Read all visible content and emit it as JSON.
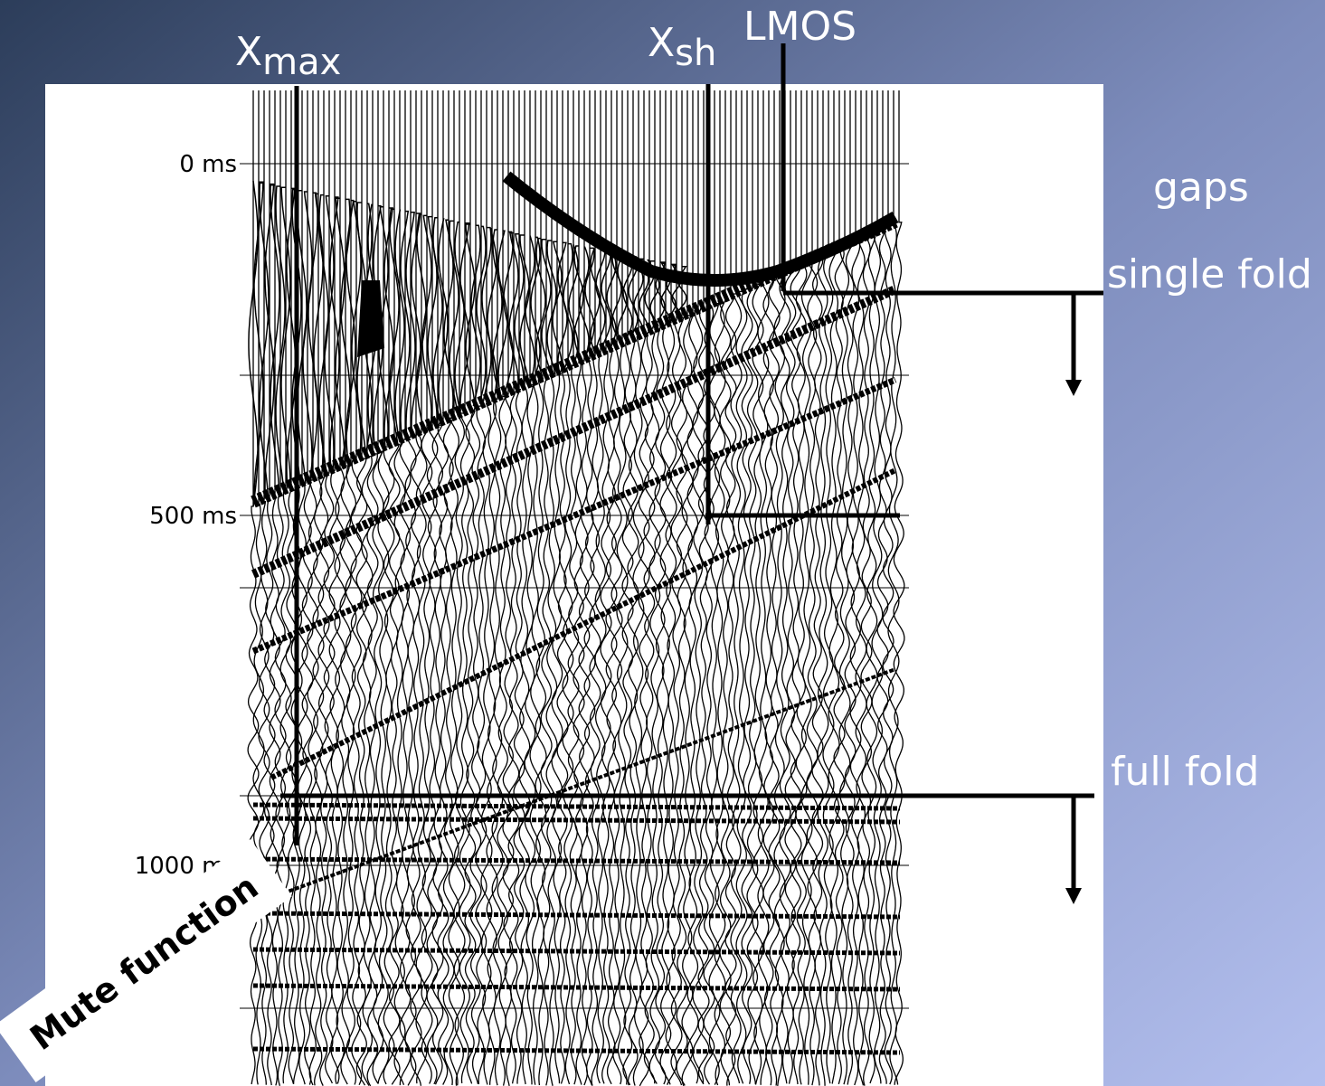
{
  "labels": {
    "xmax": {
      "main": "X",
      "sub": "max"
    },
    "xsh": {
      "main": "X",
      "sub": "sh"
    },
    "lmos": "LMOS",
    "gaps": "gaps",
    "single_fold": "single fold",
    "full_fold": "full fold",
    "mute": "Mute function"
  },
  "time_axis": [
    "0 ms",
    "500 ms",
    "1000 ms"
  ]
}
